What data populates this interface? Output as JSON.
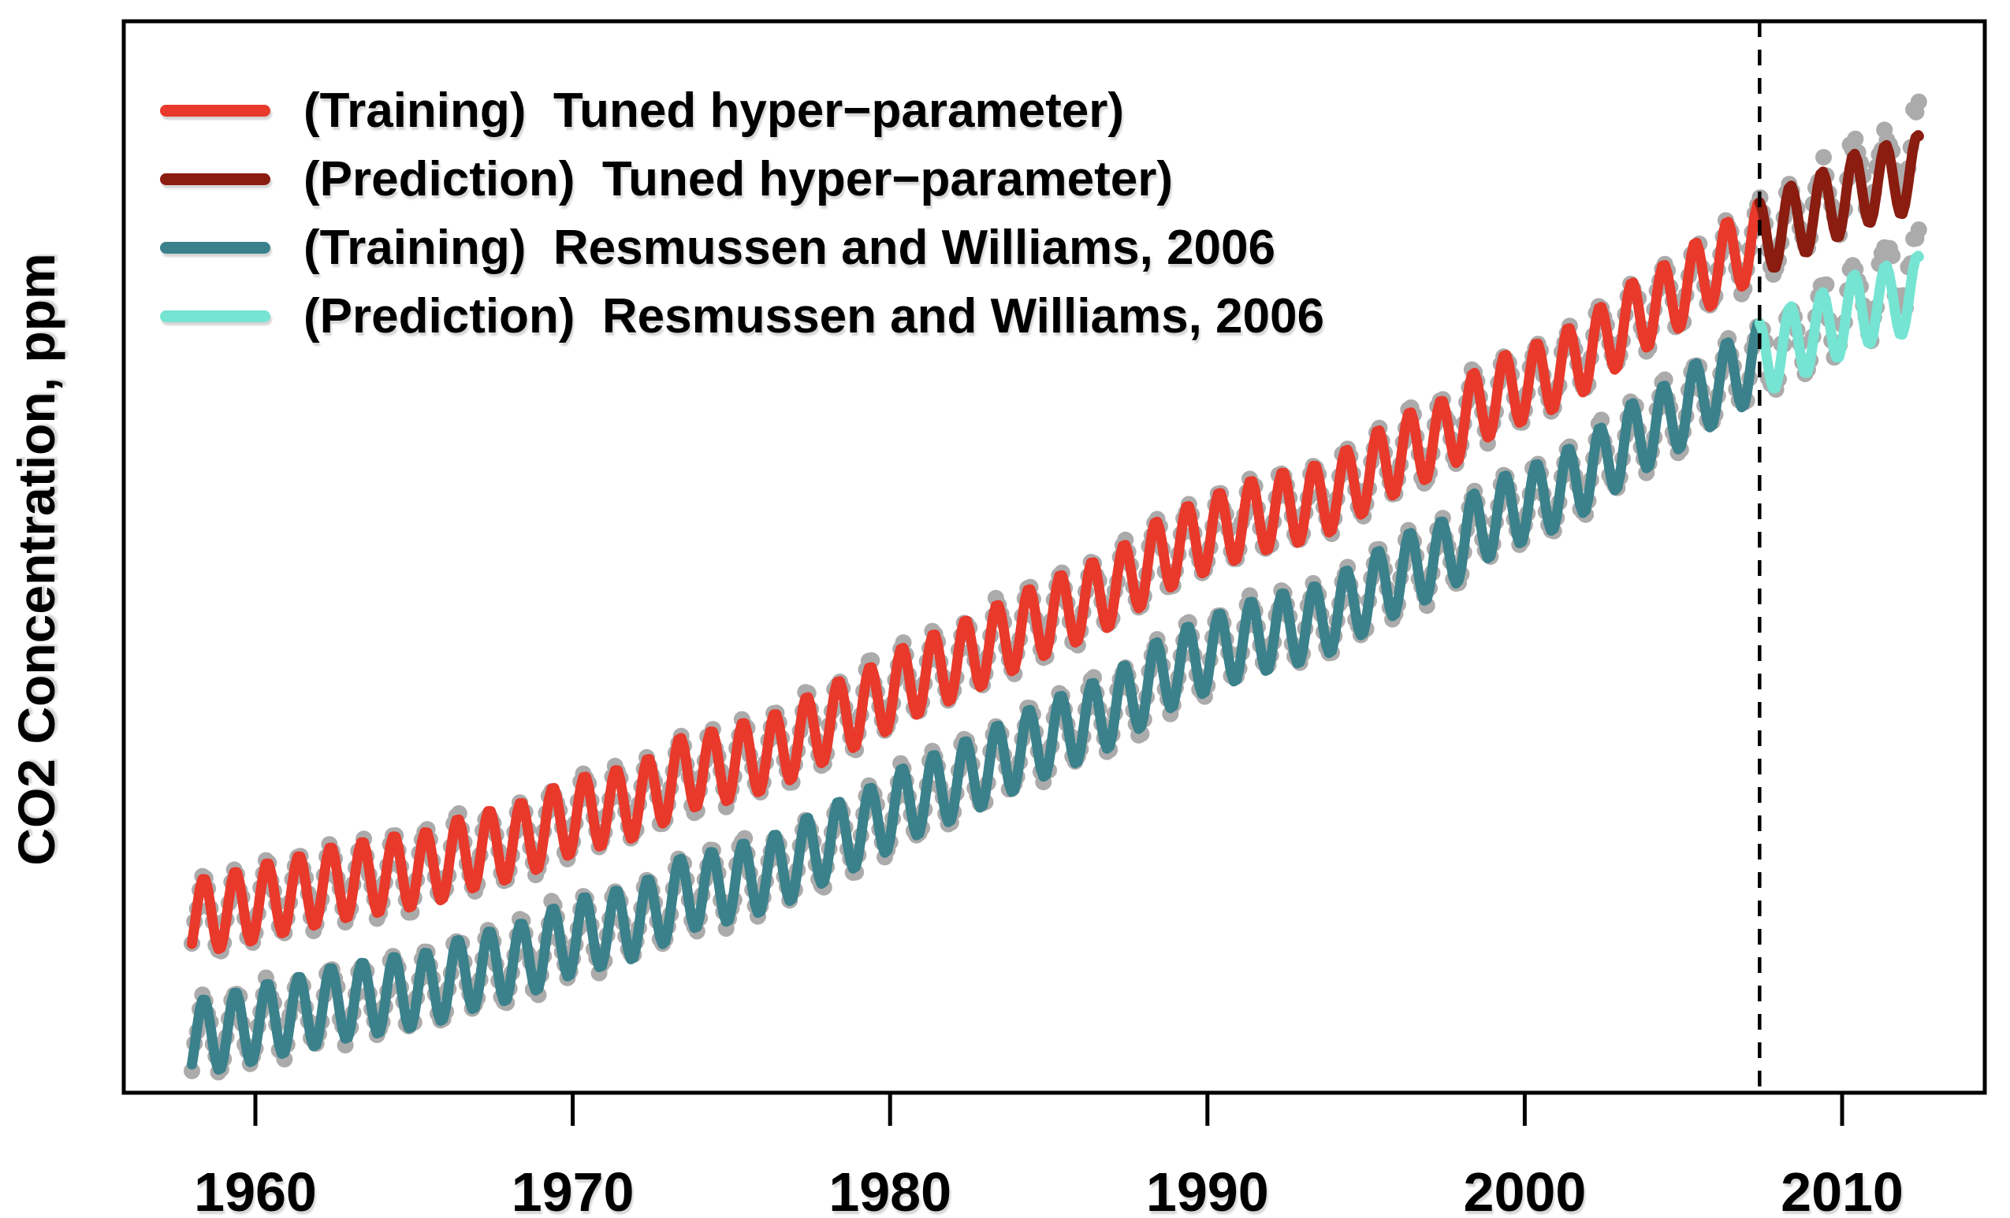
{
  "figure": {
    "background": "#ffffff"
  },
  "colors": {
    "axis": "#000000",
    "observation_dots": "#ABABAB",
    "split_line": "#000000",
    "training_tuned": "#E8392B",
    "prediction_tuned": "#8A1C10",
    "training_rw2006": "#3B818B",
    "prediction_rw2006": "#76E4D2"
  },
  "legend": {
    "items": [
      {
        "label": "(Training)  Tuned hyper−parameter)",
        "color": "#E8392B"
      },
      {
        "label": "(Prediction)  Tuned hyper−parameter)",
        "color": "#8A1C10"
      },
      {
        "label": "(Training)  Resmussen and Williams, 2006",
        "color": "#3B818B"
      },
      {
        "label": "(Prediction)  Resmussen and Williams, 2006",
        "color": "#76E4D2"
      }
    ]
  },
  "chart_data": {
    "type": "line",
    "title": "",
    "xlabel": "",
    "ylabel": "CO2 Concentration, ppm",
    "x_ticks": [
      "1960",
      "1970",
      "1980",
      "1990",
      "2000",
      "2010"
    ],
    "x_tick_years": [
      1960,
      1970,
      1980,
      1990,
      2000,
      2010
    ],
    "x_range_years": [
      1955.85,
      2014.5
    ],
    "y_range_ppm": [
      297,
      406
    ],
    "y_axis_tick_labels_shown": false,
    "grid": false,
    "legend_position": "top-left-inside",
    "train_test_split_year": 2007.4,
    "data_start_year": 1958.0,
    "data_end_year": 2012.42,
    "sampling_per_year": 12,
    "seasonal": {
      "amplitude_ppm": 3.8,
      "peak_month_fraction": 0.37
    },
    "observation_noise_ppm": 0.9,
    "prediction_noise_factor": 1.8,
    "rw2006_display_offset_ppm": -12.2,
    "prediction_shortfall_ppm_at_end": 3.2,
    "series": [
      {
        "name": "(Training)  Tuned hyper−parameter)",
        "role": "training_tuned",
        "color": "#E8392B",
        "x_start": 1958.0,
        "x_end": 2007.4
      },
      {
        "name": "(Prediction)  Tuned hyper−parameter)",
        "role": "prediction_tuned",
        "color": "#8A1C10",
        "x_start": 2007.4,
        "x_end": 2012.42
      },
      {
        "name": "(Training)  Resmussen and Williams, 2006",
        "role": "training_rw2006",
        "color": "#3B818B",
        "x_start": 1958.0,
        "x_end": 2007.4
      },
      {
        "name": "(Prediction)  Resmussen and Williams, 2006",
        "role": "prediction_rw2006",
        "color": "#76E4D2",
        "x_start": 2007.4,
        "x_end": 2012.42
      }
    ],
    "annual_mean_co2_ppm": {
      "years": [
        1958,
        1959,
        1960,
        1961,
        1962,
        1963,
        1964,
        1965,
        1966,
        1967,
        1968,
        1969,
        1970,
        1971,
        1972,
        1973,
        1974,
        1975,
        1976,
        1977,
        1978,
        1979,
        1980,
        1981,
        1982,
        1983,
        1984,
        1985,
        1986,
        1987,
        1988,
        1989,
        1990,
        1991,
        1992,
        1993,
        1994,
        1995,
        1996,
        1997,
        1998,
        1999,
        2000,
        2001,
        2002,
        2003,
        2004,
        2005,
        2006,
        2007,
        2008,
        2009,
        2010,
        2011,
        2012
      ],
      "values": [
        315.3,
        316.0,
        316.9,
        317.6,
        318.5,
        319.0,
        319.6,
        320.0,
        321.4,
        322.2,
        323.0,
        324.6,
        325.7,
        326.3,
        327.5,
        329.7,
        330.2,
        331.1,
        332.0,
        333.8,
        335.4,
        336.8,
        338.8,
        340.1,
        341.5,
        343.1,
        344.7,
        346.1,
        347.4,
        349.2,
        351.6,
        353.1,
        354.4,
        355.6,
        356.4,
        357.1,
        358.8,
        360.8,
        362.6,
        363.7,
        366.7,
        368.4,
        369.5,
        371.1,
        373.3,
        375.8,
        377.5,
        379.8,
        381.9,
        383.8,
        385.6,
        387.4,
        389.9,
        391.6,
        393.8
      ]
    }
  }
}
